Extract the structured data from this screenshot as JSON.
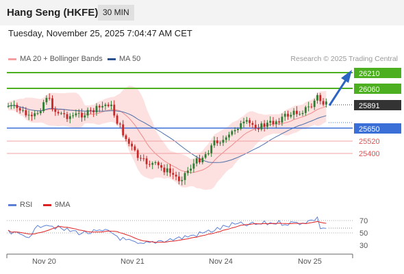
{
  "header": {
    "title": "Hang Seng (HKFE)",
    "timeframe": "30 MIN"
  },
  "datetime": "Tuesday, November 25, 2025 7:04:47 AM CET",
  "legend": {
    "ma20_bollinger": {
      "label": "MA 20 + Bollinger Bands",
      "color": "#f4a0a0"
    },
    "ma50": {
      "label": "MA 50",
      "color": "#2a4f8f"
    }
  },
  "credit": "Research © 2025 Trading Central",
  "levels": {
    "target2": {
      "label": "26210",
      "value": 26210,
      "color": "#4caf1f"
    },
    "target1": {
      "label": "26060",
      "value": 26060,
      "color": "#4caf1f"
    },
    "current": {
      "label": "25891",
      "value": 25891,
      "color": "#333333"
    },
    "pivot": {
      "label": "25650",
      "value": 25650,
      "color": "#3b6fd8"
    },
    "support1": {
      "label": "25520",
      "value": 25520,
      "color": "#e05050"
    },
    "support2": {
      "label": "25400",
      "value": 25400,
      "color": "#e05050"
    }
  },
  "rsi_panel": {
    "rsi_label": "RSI",
    "rsi_color": "#5b7fd6",
    "ma_label": "9MA",
    "ma_color": "#e02020",
    "ticks": [
      "70",
      "50",
      "30"
    ]
  },
  "x_axis": {
    "labels": [
      "Nov 20",
      "Nov 21",
      "Nov 24",
      "Nov 25"
    ]
  }
}
